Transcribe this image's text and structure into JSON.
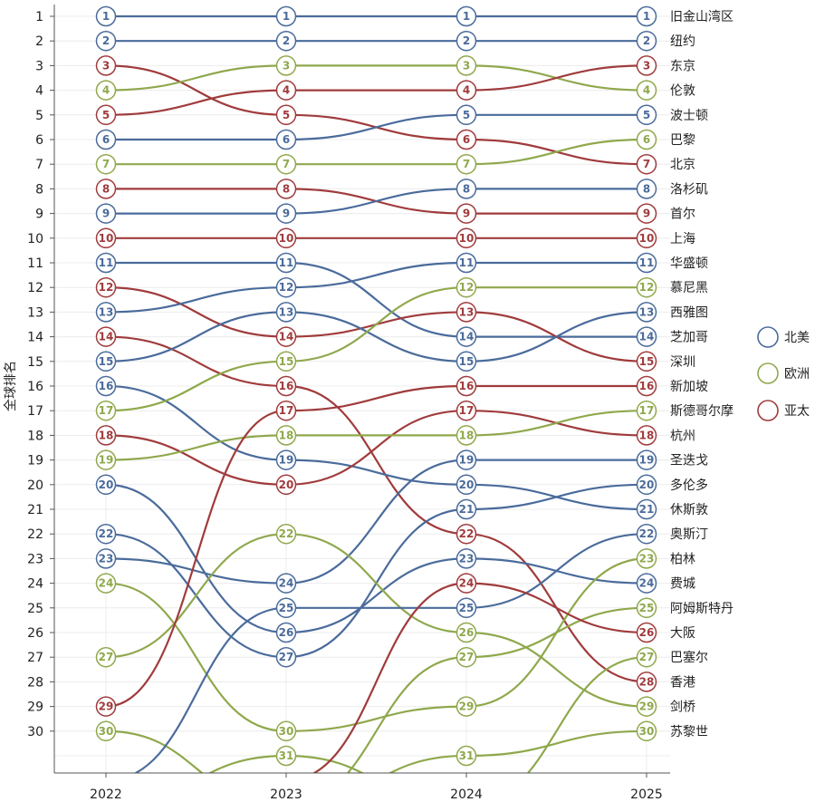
{
  "chart_data": {
    "type": "bump",
    "ylabel": "全球排名",
    "years": [
      "2022",
      "2023",
      "2024",
      "2025"
    ],
    "rank_ticks": [
      1,
      2,
      3,
      4,
      5,
      6,
      7,
      8,
      9,
      10,
      11,
      12,
      13,
      14,
      15,
      16,
      17,
      18,
      19,
      20,
      21,
      22,
      23,
      24,
      25,
      26,
      27,
      28,
      29,
      30
    ],
    "legend": [
      {
        "name": "北美",
        "color": "#4a6b9b"
      },
      {
        "name": "欧洲",
        "color": "#8fa84c"
      },
      {
        "name": "亚太",
        "color": "#a03b3c"
      }
    ],
    "series": [
      {
        "name": "旧金山湾区",
        "region": "北美",
        "ranks": [
          1,
          1,
          1,
          1
        ]
      },
      {
        "name": "纽约",
        "region": "北美",
        "ranks": [
          2,
          2,
          2,
          2
        ]
      },
      {
        "name": "北京",
        "region": "亚太",
        "ranks": [
          3,
          5,
          6,
          7
        ]
      },
      {
        "name": "伦敦",
        "region": "欧洲",
        "ranks": [
          4,
          3,
          3,
          4
        ]
      },
      {
        "name": "东京",
        "region": "亚太",
        "ranks": [
          5,
          4,
          4,
          3
        ]
      },
      {
        "name": "波士顿",
        "region": "北美",
        "ranks": [
          6,
          6,
          5,
          5
        ]
      },
      {
        "name": "巴黎",
        "region": "欧洲",
        "ranks": [
          7,
          7,
          7,
          6
        ]
      },
      {
        "name": "首尔",
        "region": "亚太",
        "ranks": [
          8,
          8,
          9,
          9
        ]
      },
      {
        "name": "洛杉矶",
        "region": "北美",
        "ranks": [
          9,
          9,
          8,
          8
        ]
      },
      {
        "name": "上海",
        "region": "亚太",
        "ranks": [
          10,
          10,
          10,
          10
        ]
      },
      {
        "name": "芝加哥",
        "region": "北美",
        "ranks": [
          11,
          11,
          14,
          14
        ]
      },
      {
        "name": "深圳",
        "region": "亚太",
        "ranks": [
          12,
          14,
          13,
          15
        ]
      },
      {
        "name": "华盛顿",
        "region": "北美",
        "ranks": [
          13,
          12,
          11,
          11
        ]
      },
      {
        "name": "香港",
        "region": "亚太",
        "ranks": [
          14,
          16,
          22,
          28
        ]
      },
      {
        "name": "西雅图",
        "region": "北美",
        "ranks": [
          15,
          13,
          15,
          13
        ]
      },
      {
        "name": "休斯敦",
        "region": "北美",
        "ranks": [
          16,
          19,
          20,
          21
        ]
      },
      {
        "name": "慕尼黑",
        "region": "欧洲",
        "ranks": [
          17,
          15,
          12,
          12
        ]
      },
      {
        "name": "杭州",
        "region": "亚太",
        "ranks": [
          18,
          20,
          17,
          18
        ]
      },
      {
        "name": "斯德哥尔摩",
        "region": "欧洲",
        "ranks": [
          19,
          18,
          18,
          17
        ]
      },
      {
        "name": "费城",
        "region": "北美",
        "ranks": [
          20,
          26,
          23,
          24
        ]
      },
      {
        "name": "多伦多",
        "region": "北美",
        "ranks": [
          22,
          27,
          21,
          20
        ]
      },
      {
        "name": "圣迭戈",
        "region": "北美",
        "ranks": [
          23,
          24,
          19,
          19
        ]
      },
      {
        "name": "柏林",
        "region": "欧洲",
        "ranks": [
          24,
          30,
          29,
          23
        ]
      },
      {
        "name": "剑桥",
        "region": "欧洲",
        "ranks": [
          27,
          22,
          26,
          29
        ]
      },
      {
        "name": "新加坡",
        "region": "亚太",
        "ranks": [
          29,
          17,
          16,
          16
        ]
      },
      {
        "name": "阿姆斯特丹",
        "region": "欧洲",
        "ranks": [
          30,
          33,
          27,
          25
        ]
      },
      {
        "name": "奥斯汀",
        "region": "北美",
        "ranks": [
          32,
          25,
          25,
          22
        ]
      },
      {
        "name": "巴塞尔",
        "region": "欧洲",
        "ranks": [
          33,
          31,
          33,
          27
        ]
      },
      {
        "name": "大阪",
        "region": "亚太",
        "ranks": [
          33,
          32,
          24,
          26
        ]
      },
      {
        "name": "苏黎世",
        "region": "欧洲",
        "ranks": [
          33,
          33,
          31,
          30
        ]
      }
    ],
    "visible_points": [
      [
        1,
        2,
        3,
        4,
        5,
        6,
        7,
        8,
        9,
        10,
        11,
        12,
        13,
        14,
        15,
        16,
        17,
        18,
        19,
        20,
        22,
        23,
        24,
        27,
        29,
        30
      ],
      [
        1,
        2,
        3,
        4,
        5,
        6,
        7,
        8,
        9,
        10,
        11,
        12,
        13,
        14,
        15,
        16,
        17,
        18,
        19,
        20,
        22,
        24,
        25,
        26,
        27,
        30,
        31
      ],
      [
        1,
        2,
        3,
        4,
        5,
        6,
        7,
        8,
        9,
        10,
        11,
        12,
        13,
        14,
        15,
        16,
        17,
        18,
        19,
        20,
        21,
        22,
        23,
        24,
        25,
        26,
        27,
        29,
        31
      ],
      [
        1,
        2,
        3,
        4,
        5,
        6,
        7,
        8,
        9,
        10,
        11,
        12,
        13,
        14,
        15,
        16,
        17,
        18,
        19,
        20,
        21,
        22,
        23,
        24,
        25,
        26,
        27,
        28,
        29,
        30
      ]
    ]
  }
}
